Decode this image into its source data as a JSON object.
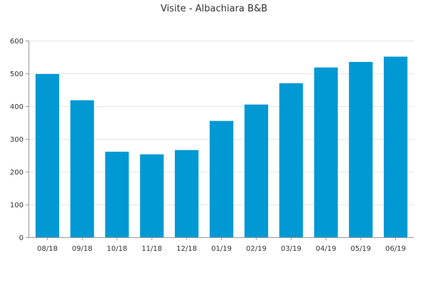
{
  "chart_data": {
    "type": "bar",
    "title": "Visite - Albachiara B&B",
    "xlabel": "",
    "ylabel": "",
    "categories": [
      "08/18",
      "09/18",
      "10/18",
      "11/18",
      "12/18",
      "01/19",
      "02/19",
      "03/19",
      "04/19",
      "05/19",
      "06/19"
    ],
    "values": [
      498,
      418,
      261,
      253,
      266,
      355,
      405,
      470,
      518,
      535,
      551
    ],
    "ylim": [
      0,
      600
    ],
    "yticks": [
      "0",
      "100",
      "200",
      "300",
      "400",
      "500",
      "600"
    ],
    "grid": true,
    "legend": "none",
    "bar_color": "#0099d4"
  }
}
